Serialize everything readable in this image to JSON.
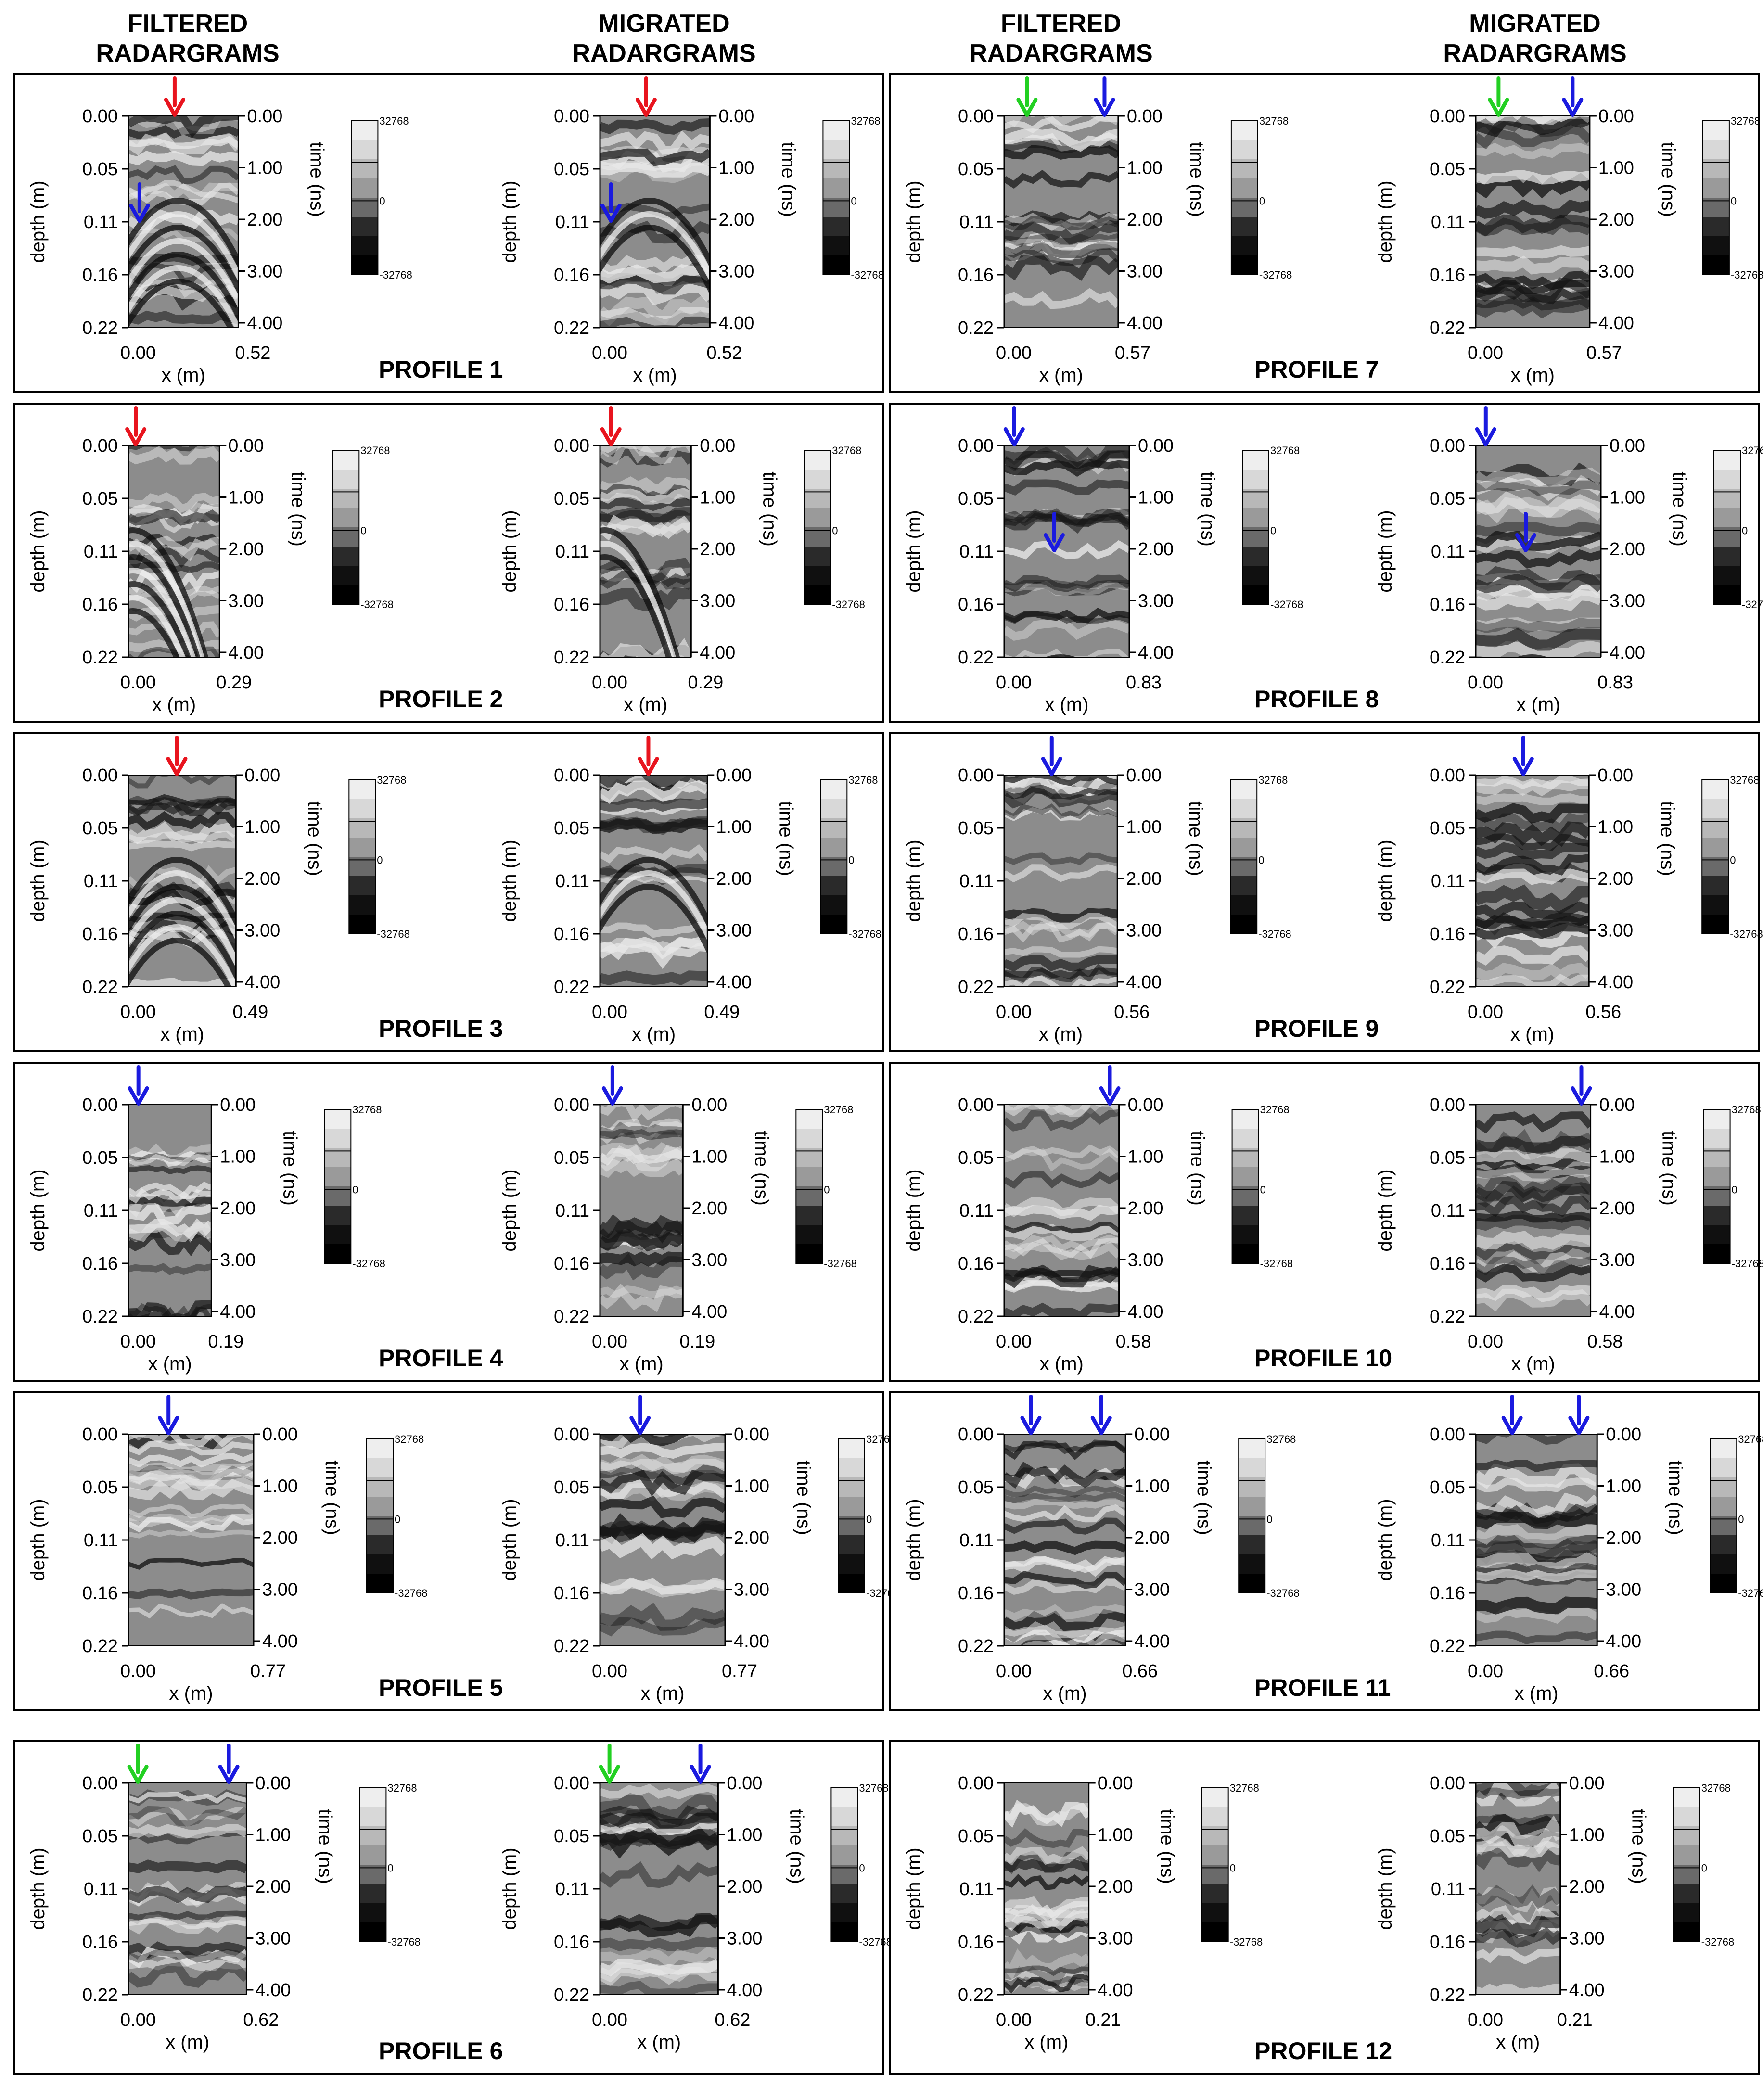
{
  "headers": {
    "left_filtered": "FILTERED\nRADARGRAMS",
    "left_migrated": "MIGRATED\nRADARGRAMS",
    "right_filtered": "FILTERED\nRADARGRAMS",
    "right_migrated": "MIGRATED\nRADARGRAMS"
  },
  "axes": {
    "depth_label": "depth (m)",
    "time_label": "time (ns)",
    "x_label": "x (m)",
    "depth_ticks": [
      "0.00",
      "0.05",
      "0.11",
      "0.16",
      "0.22"
    ],
    "time_ticks": [
      "0.00",
      "1.00",
      "2.00",
      "3.00",
      "4.00"
    ],
    "x_start": "0.00"
  },
  "colorbar": {
    "max": "32768",
    "mid": "0",
    "min": "-32768"
  },
  "arrow_colors": {
    "red": "#e8141e",
    "blue": "#1a1adf",
    "green": "#22d022"
  },
  "profiles": [
    {
      "title": "PROFILE 1",
      "xmax": "0.52",
      "filtered_arrows": [
        {
          "color": "red",
          "x": 0.42,
          "d": 0.0
        },
        {
          "color": "blue",
          "x": 0.1,
          "d": 0.11
        }
      ],
      "migrated_arrows": [
        {
          "color": "red",
          "x": 0.42,
          "d": 0.0
        },
        {
          "color": "blue",
          "x": 0.1,
          "d": 0.11
        }
      ]
    },
    {
      "title": "PROFILE 2",
      "xmax": "0.29",
      "filtered_arrows": [
        {
          "color": "red",
          "x": 0.08,
          "d": 0.0
        }
      ],
      "migrated_arrows": [
        {
          "color": "red",
          "x": 0.12,
          "d": 0.0
        }
      ]
    },
    {
      "title": "PROFILE 3",
      "xmax": "0.49",
      "filtered_arrows": [
        {
          "color": "red",
          "x": 0.45,
          "d": 0.0
        }
      ],
      "migrated_arrows": [
        {
          "color": "red",
          "x": 0.45,
          "d": 0.0
        }
      ]
    },
    {
      "title": "PROFILE 4",
      "xmax": "0.19",
      "filtered_arrows": [
        {
          "color": "blue",
          "x": 0.12,
          "d": 0.0
        }
      ],
      "migrated_arrows": [
        {
          "color": "blue",
          "x": 0.15,
          "d": 0.0
        }
      ]
    },
    {
      "title": "PROFILE 5",
      "xmax": "0.77",
      "filtered_arrows": [
        {
          "color": "blue",
          "x": 0.32,
          "d": 0.0
        }
      ],
      "migrated_arrows": [
        {
          "color": "blue",
          "x": 0.32,
          "d": 0.0
        }
      ]
    },
    {
      "title": "PROFILE 6",
      "xmax": "0.62",
      "filtered_arrows": [
        {
          "color": "green",
          "x": 0.08,
          "d": 0.0
        },
        {
          "color": "blue",
          "x": 0.85,
          "d": 0.0
        }
      ],
      "migrated_arrows": [
        {
          "color": "green",
          "x": 0.08,
          "d": 0.0
        },
        {
          "color": "blue",
          "x": 0.85,
          "d": 0.0
        }
      ]
    },
    {
      "title": "PROFILE 7",
      "xmax": "0.57",
      "filtered_arrows": [
        {
          "color": "green",
          "x": 0.2,
          "d": 0.0
        },
        {
          "color": "blue",
          "x": 0.88,
          "d": 0.0
        }
      ],
      "migrated_arrows": [
        {
          "color": "green",
          "x": 0.2,
          "d": 0.0
        },
        {
          "color": "blue",
          "x": 0.85,
          "d": 0.0
        }
      ]
    },
    {
      "title": "PROFILE 8",
      "xmax": "0.83",
      "filtered_arrows": [
        {
          "color": "blue",
          "x": 0.08,
          "d": 0.0
        },
        {
          "color": "blue",
          "x": 0.4,
          "d": 0.11
        }
      ],
      "migrated_arrows": [
        {
          "color": "blue",
          "x": 0.08,
          "d": 0.0
        },
        {
          "color": "blue",
          "x": 0.4,
          "d": 0.11
        }
      ]
    },
    {
      "title": "PROFILE 9",
      "xmax": "0.56",
      "filtered_arrows": [
        {
          "color": "blue",
          "x": 0.42,
          "d": 0.0
        }
      ],
      "migrated_arrows": [
        {
          "color": "blue",
          "x": 0.42,
          "d": 0.0
        }
      ]
    },
    {
      "title": "PROFILE 10",
      "xmax": "0.58",
      "filtered_arrows": [
        {
          "color": "blue",
          "x": 0.92,
          "d": 0.0
        }
      ],
      "migrated_arrows": [
        {
          "color": "blue",
          "x": 0.92,
          "d": 0.0
        }
      ]
    },
    {
      "title": "PROFILE 11",
      "xmax": "0.66",
      "filtered_arrows": [
        {
          "color": "blue",
          "x": 0.22,
          "d": 0.0
        },
        {
          "color": "blue",
          "x": 0.8,
          "d": 0.0
        }
      ],
      "migrated_arrows": [
        {
          "color": "blue",
          "x": 0.3,
          "d": 0.0
        },
        {
          "color": "blue",
          "x": 0.85,
          "d": 0.0
        }
      ]
    },
    {
      "title": "PROFILE 12",
      "xmax": "0.21",
      "filtered_arrows": [],
      "migrated_arrows": []
    }
  ]
}
